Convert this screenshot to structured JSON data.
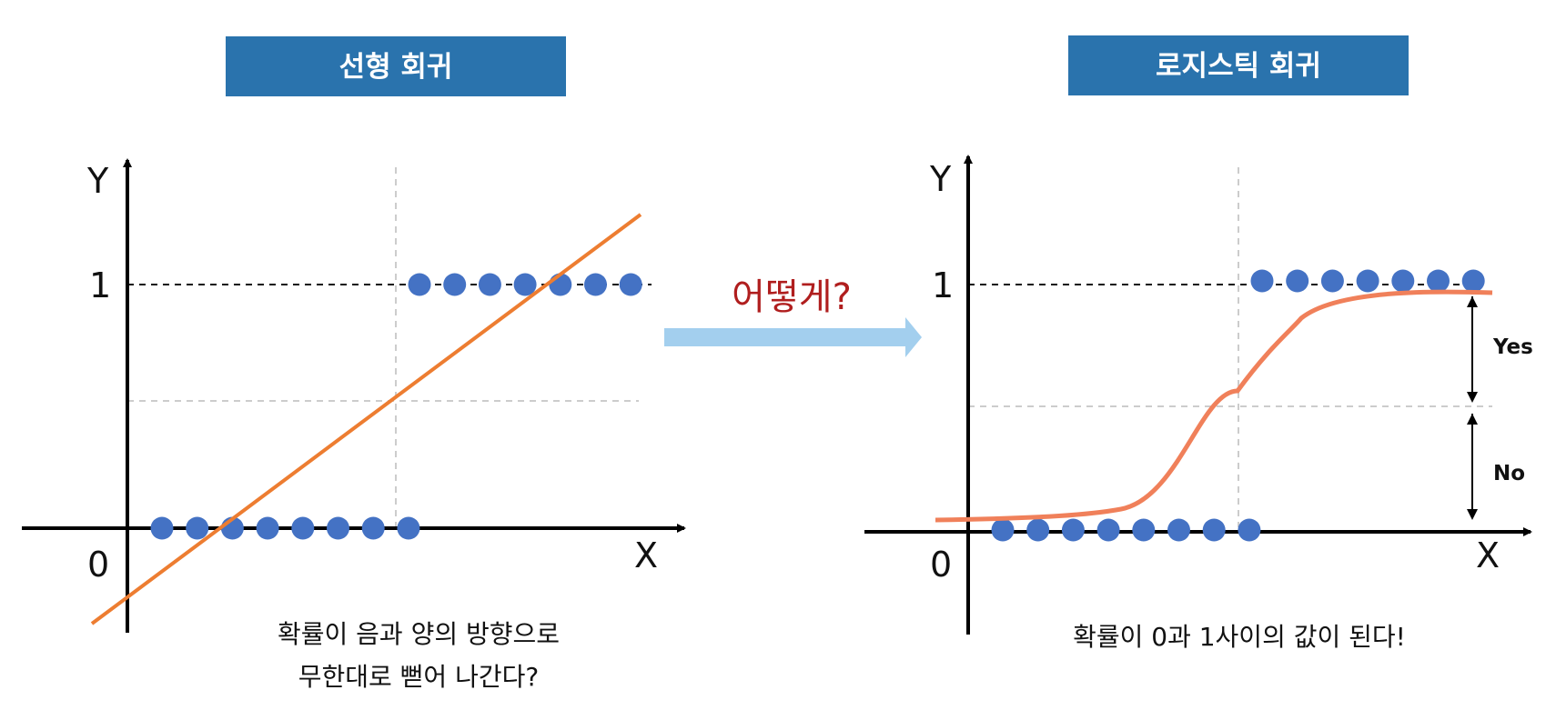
{
  "colors": {
    "header_bg": "#2a73ad",
    "point": "#4472c4",
    "linear_line": "#ed7d31",
    "logistic_curve": "#f0805a",
    "arrow": "#a3cfee",
    "question": "#b01e1e"
  },
  "left_panel": {
    "header": "선형 회귀",
    "y_label": "Y",
    "x_label": "X",
    "one_label": "1",
    "zero_label": "0",
    "caption_line1": "확률이 음과 양의 방향으로",
    "caption_line2": "무한대로 뻗어 나간다?",
    "points_y0_count": 8,
    "points_y1_count": 7
  },
  "middle": {
    "question": "어떻게?",
    "arrow_icon": "right-arrow-icon"
  },
  "right_panel": {
    "header": "로지스틱 회귀",
    "y_label": "Y",
    "x_label": "X",
    "one_label": "1",
    "zero_label": "0",
    "yes_label": "Yes",
    "no_label": "No",
    "caption": "확률이 0과 1사이의 값이 된다!",
    "points_y0_count": 8,
    "points_y1_count": 7
  }
}
